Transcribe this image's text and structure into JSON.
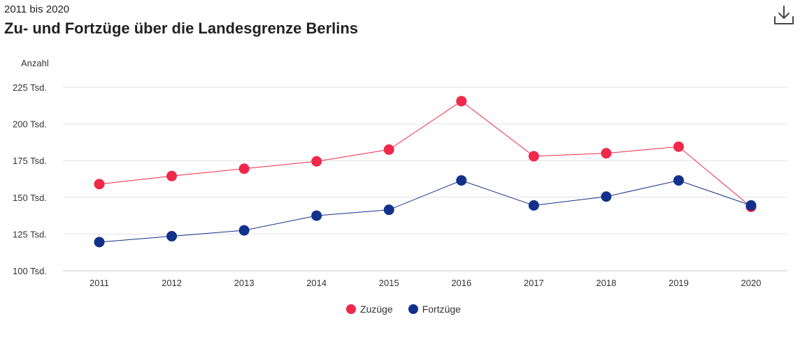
{
  "header": {
    "subtitle": "2011 bis 2020",
    "title": "Zu- und Fortzüge über die Landesgrenze Berlins",
    "download_icon": "download-icon"
  },
  "chart_data": {
    "type": "line",
    "title": "Zu- und Fortzüge über die Landesgrenze Berlins",
    "subtitle": "2011 bis 2020",
    "ylabel": "Anzahl",
    "xlabel": "",
    "x": [
      "2011",
      "2012",
      "2013",
      "2014",
      "2015",
      "2016",
      "2017",
      "2018",
      "2019",
      "2020"
    ],
    "ylim": [
      100000,
      225000
    ],
    "yticks": [
      100000,
      125000,
      150000,
      175000,
      200000,
      225000
    ],
    "ytick_labels": [
      "100 Tsd.",
      "125 Tsd.",
      "150 Tsd.",
      "175 Tsd.",
      "200 Tsd.",
      "225 Tsd."
    ],
    "grid": true,
    "legend_position": "bottom-center",
    "series": [
      {
        "name": "Zuzüge",
        "color": "#f0284a",
        "values": [
          159000,
          164500,
          169500,
          174500,
          182500,
          215500,
          178000,
          180000,
          184500,
          143500
        ]
      },
      {
        "name": "Fortzüge",
        "color": "#12318a",
        "values": [
          119500,
          123500,
          127500,
          137500,
          141500,
          161500,
          144500,
          150500,
          161500,
          144500
        ]
      }
    ]
  }
}
